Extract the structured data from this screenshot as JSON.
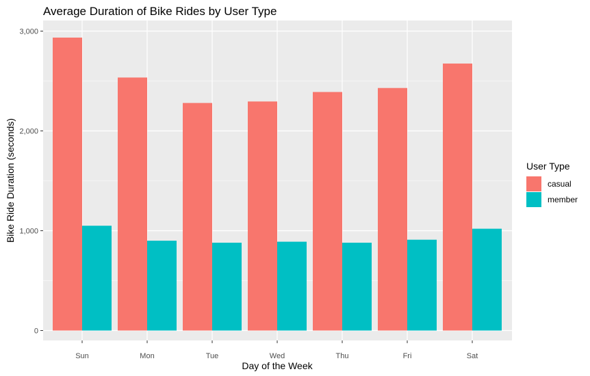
{
  "chart_data": {
    "type": "bar",
    "title": "Average Duration of Bike Rides by User Type",
    "xlabel": "Day of the Week",
    "ylabel": "Bike Ride Duration (seconds)",
    "categories": [
      "Sun",
      "Mon",
      "Tue",
      "Wed",
      "Thu",
      "Fri",
      "Sat"
    ],
    "ylim": [
      0,
      3000
    ],
    "yticks": [
      0,
      1000,
      2000,
      3000
    ],
    "ytick_labels": [
      "0",
      "1,000",
      "2,000",
      "3,000"
    ],
    "grid": true,
    "legend": {
      "title": "User Type",
      "placement": "right"
    },
    "series": [
      {
        "name": "casual",
        "color": "#F8766D",
        "values": [
          2935,
          2535,
          2280,
          2295,
          2390,
          2430,
          2675
        ]
      },
      {
        "name": "member",
        "color": "#00BFC4",
        "values": [
          1050,
          900,
          880,
          890,
          880,
          910,
          1020
        ]
      }
    ],
    "panel_background": "#EBEBEB",
    "gridline_color": "#FFFFFF"
  }
}
